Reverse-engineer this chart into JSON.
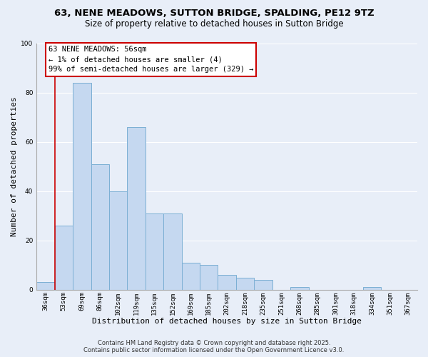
{
  "title": "63, NENE MEADOWS, SUTTON BRIDGE, SPALDING, PE12 9TZ",
  "subtitle": "Size of property relative to detached houses in Sutton Bridge",
  "xlabel": "Distribution of detached houses by size in Sutton Bridge",
  "ylabel": "Number of detached properties",
  "bar_values": [
    3,
    26,
    84,
    51,
    40,
    66,
    31,
    31,
    11,
    10,
    6,
    5,
    4,
    0,
    1,
    0,
    0,
    0,
    1,
    0,
    0
  ],
  "categories": [
    "36sqm",
    "53sqm",
    "69sqm",
    "86sqm",
    "102sqm",
    "119sqm",
    "135sqm",
    "152sqm",
    "169sqm",
    "185sqm",
    "202sqm",
    "218sqm",
    "235sqm",
    "251sqm",
    "268sqm",
    "285sqm",
    "301sqm",
    "318sqm",
    "334sqm",
    "351sqm",
    "367sqm"
  ],
  "bar_color": "#c5d8f0",
  "bar_edge_color": "#7bafd4",
  "vline_x": 1.5,
  "vline_color": "#cc0000",
  "annotation_lines": [
    "63 NENE MEADOWS: 56sqm",
    "← 1% of detached houses are smaller (4)",
    "99% of semi-detached houses are larger (329) →"
  ],
  "annotation_box_color": "white",
  "annotation_box_edge_color": "#cc0000",
  "ylim": [
    0,
    100
  ],
  "yticks": [
    0,
    20,
    40,
    60,
    80,
    100
  ],
  "footnote1": "Contains HM Land Registry data © Crown copyright and database right 2025.",
  "footnote2": "Contains public sector information licensed under the Open Government Licence v3.0.",
  "background_color": "#e8eef8",
  "plot_bg_color": "#e8eef8",
  "title_fontsize": 9.5,
  "subtitle_fontsize": 8.5,
  "axis_label_fontsize": 8,
  "tick_fontsize": 6.5,
  "annotation_fontsize": 7.5,
  "footnote_fontsize": 6.0
}
